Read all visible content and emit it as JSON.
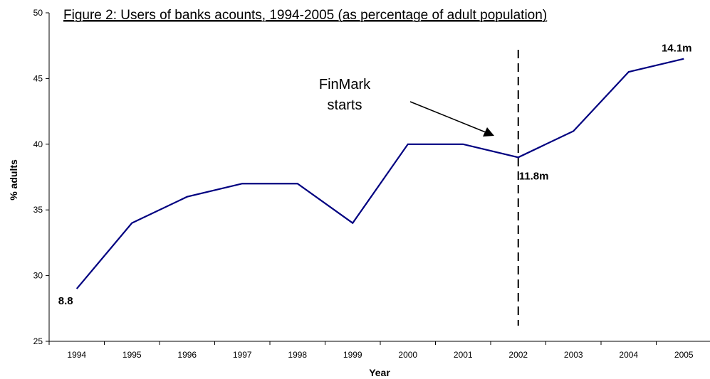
{
  "chart_data": {
    "type": "line",
    "title": "Figure 2: Users of banks acounts, 1994-2005 (as percentage of adult population)",
    "xlabel": "Year",
    "ylabel": "% adults",
    "categories": [
      "1994",
      "1995",
      "1996",
      "1997",
      "1998",
      "1999",
      "2000",
      "2001",
      "2002",
      "2003",
      "2004",
      "2005"
    ],
    "series": [
      {
        "values": [
          29,
          34,
          36,
          37,
          37,
          34,
          40,
          40,
          39,
          41,
          45.5,
          46.5
        ]
      }
    ],
    "ylim": [
      25,
      50
    ],
    "yticks": [
      25,
      30,
      35,
      40,
      45,
      50
    ],
    "grid": false,
    "series_color": "#000080",
    "data_labels": [
      {
        "category": "1994",
        "text": "8.8"
      },
      {
        "category": "2002",
        "text": "11.8m"
      },
      {
        "category": "2005",
        "text": "14.1m"
      }
    ],
    "annotation": {
      "lines": [
        "FinMark",
        "starts"
      ],
      "vline_category": "2002",
      "vline_style": "dashed"
    }
  }
}
